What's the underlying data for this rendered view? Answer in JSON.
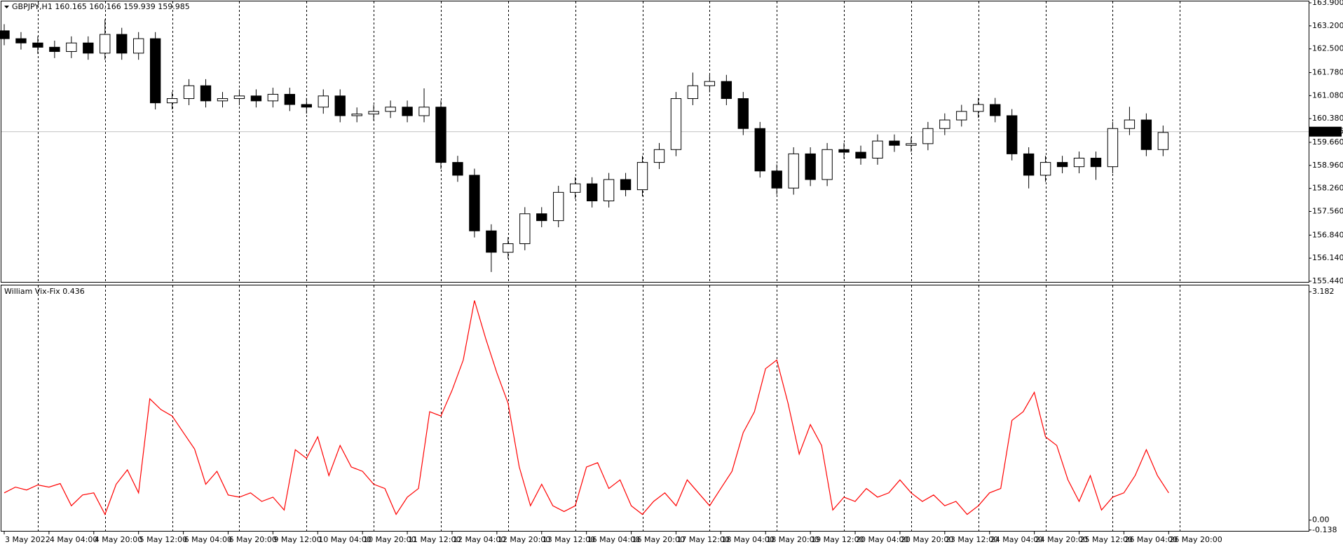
{
  "chart_data": [
    {
      "type": "candlestick",
      "title": "GBPJPY,H1  160.165 160.166 159.939 159.985",
      "x": [
        12,
        18,
        24,
        30,
        36,
        42,
        48,
        54,
        60,
        66,
        72,
        78,
        84,
        90,
        96,
        102,
        108,
        114,
        120,
        126,
        132,
        138,
        144,
        150,
        156,
        162,
        168,
        174,
        180,
        186,
        192,
        198,
        204,
        210,
        216,
        222,
        228,
        234,
        240,
        246,
        252,
        258,
        264,
        270,
        276,
        282,
        288,
        294,
        300,
        306,
        312,
        318,
        324,
        330,
        336,
        342,
        348,
        354,
        360,
        366,
        372,
        378,
        384,
        390,
        396,
        402,
        408,
        414,
        420,
        426
      ],
      "open": [
        163.05,
        162.81,
        162.68,
        162.55,
        162.42,
        162.68,
        162.37,
        162.94,
        162.37,
        162.81,
        160.86,
        160.99,
        161.38,
        160.92,
        160.99,
        161.07,
        160.92,
        161.12,
        160.81,
        160.73,
        161.07,
        160.47,
        160.52,
        160.6,
        160.73,
        160.47,
        160.73,
        159.05,
        158.66,
        156.97,
        156.32,
        156.58,
        157.49,
        157.28,
        158.14,
        158.4,
        157.88,
        158.53,
        158.22,
        159.05,
        159.44,
        160.99,
        161.38,
        161.51,
        160.99,
        160.08,
        158.79,
        158.27,
        159.31,
        158.53,
        159.44,
        159.36,
        159.18,
        159.7,
        159.57,
        159.62,
        160.08,
        160.34,
        160.6,
        160.81,
        160.47,
        159.31,
        158.66,
        159.05,
        158.92,
        159.18,
        158.92,
        160.08,
        160.34,
        159.44
      ],
      "high": [
        163.25,
        163.01,
        162.88,
        162.75,
        162.88,
        162.88,
        163.4,
        163.14,
        163.01,
        163.01,
        161.19,
        161.58,
        161.58,
        161.19,
        161.27,
        161.27,
        161.32,
        161.32,
        161.01,
        161.27,
        161.27,
        160.72,
        160.8,
        160.93,
        160.93,
        161.3,
        160.93,
        159.25,
        158.86,
        157.17,
        156.78,
        157.69,
        157.69,
        158.34,
        158.6,
        158.6,
        158.73,
        158.73,
        159.25,
        159.64,
        161.19,
        161.78,
        161.71,
        161.71,
        161.19,
        160.28,
        158.99,
        159.51,
        159.51,
        159.64,
        159.64,
        159.56,
        159.9,
        159.9,
        159.82,
        160.28,
        160.54,
        160.8,
        161.01,
        161.01,
        160.67,
        159.51,
        159.25,
        159.25,
        159.38,
        159.38,
        160.28,
        160.74,
        160.54,
        160.17
      ],
      "low": [
        162.61,
        162.48,
        162.35,
        162.22,
        162.22,
        162.17,
        162.17,
        162.17,
        162.17,
        160.66,
        160.66,
        160.79,
        160.72,
        160.72,
        160.79,
        160.72,
        160.72,
        160.61,
        160.53,
        160.53,
        160.27,
        160.27,
        160.32,
        160.4,
        160.27,
        160.27,
        158.85,
        158.46,
        156.77,
        155.72,
        156.12,
        156.38,
        157.08,
        157.08,
        157.94,
        157.68,
        157.68,
        158.02,
        158.02,
        158.85,
        159.24,
        160.79,
        161.18,
        160.79,
        159.88,
        158.59,
        158.07,
        158.07,
        158.33,
        158.33,
        159.16,
        158.98,
        158.98,
        159.37,
        159.37,
        159.42,
        159.88,
        160.14,
        160.4,
        160.27,
        159.11,
        158.26,
        158.46,
        158.72,
        158.72,
        158.52,
        158.72,
        159.88,
        159.24,
        159.24
      ],
      "close": [
        162.81,
        162.68,
        162.55,
        162.42,
        162.68,
        162.37,
        162.94,
        162.37,
        162.81,
        160.86,
        160.99,
        161.38,
        160.92,
        160.99,
        161.07,
        160.92,
        161.12,
        160.81,
        160.73,
        161.07,
        160.47,
        160.52,
        160.6,
        160.73,
        160.47,
        160.73,
        159.05,
        158.66,
        156.97,
        156.32,
        156.58,
        157.49,
        157.28,
        158.14,
        158.4,
        157.88,
        158.53,
        158.22,
        159.05,
        159.44,
        160.99,
        161.38,
        161.51,
        160.99,
        160.08,
        158.79,
        158.27,
        159.31,
        158.53,
        159.44,
        159.36,
        159.18,
        159.7,
        159.57,
        159.62,
        160.08,
        160.34,
        160.6,
        160.81,
        160.47,
        159.31,
        158.66,
        159.05,
        158.92,
        159.18,
        158.92,
        160.08,
        160.34,
        159.44,
        159.96
      ],
      "bull_color": "#ffffff",
      "bear_color": "#000000",
      "outline_color": "#000000",
      "current_price": 159.985,
      "xlim": [
        11,
        478
      ],
      "xgrid": [
        24,
        48,
        72,
        96,
        120,
        144,
        168,
        192,
        216,
        240,
        264,
        288,
        312,
        336,
        360,
        384,
        408,
        432
      ],
      "ylim": [
        155.44,
        163.9
      ],
      "yticks": [
        {
          "value": 163.9,
          "label": "163.900"
        },
        {
          "value": 163.2,
          "label": "163.200"
        },
        {
          "value": 162.5,
          "label": "162.500"
        },
        {
          "value": 161.78,
          "label": "161.780"
        },
        {
          "value": 161.08,
          "label": "161.080"
        },
        {
          "value": 160.38,
          "label": "160.380"
        },
        {
          "value": 159.66,
          "label": "159.660"
        },
        {
          "value": 158.96,
          "label": "158.960"
        },
        {
          "value": 158.26,
          "label": "158.260"
        },
        {
          "value": 157.56,
          "label": "157.560"
        },
        {
          "value": 156.84,
          "label": "156.840"
        },
        {
          "value": 156.14,
          "label": "156.140"
        },
        {
          "value": 155.44,
          "label": "155.440"
        }
      ]
    },
    {
      "type": "line",
      "title": "William Vix-Fix 0.436",
      "color": "#ff0000",
      "x": [
        12,
        16,
        20,
        24,
        28,
        32,
        36,
        40,
        44,
        48,
        52,
        56,
        60,
        64,
        68,
        72,
        76,
        80,
        84,
        88,
        92,
        96,
        100,
        104,
        108,
        112,
        116,
        120,
        124,
        128,
        132,
        136,
        140,
        144,
        148,
        152,
        156,
        160,
        164,
        168,
        172,
        176,
        180,
        184,
        188,
        192,
        196,
        200,
        204,
        208,
        212,
        216,
        220,
        224,
        228,
        232,
        236,
        240,
        244,
        248,
        252,
        256,
        260,
        264,
        268,
        272,
        276,
        280,
        284,
        288,
        292,
        296,
        300,
        304,
        308,
        312,
        316,
        320,
        324,
        328,
        332,
        336,
        340,
        344,
        348,
        352,
        356,
        360,
        364,
        368,
        372,
        376,
        380,
        384,
        388,
        392,
        396,
        400,
        404,
        408,
        412,
        416,
        420,
        424,
        428
      ],
      "values": [
        0.38,
        0.46,
        0.42,
        0.49,
        0.46,
        0.51,
        0.2,
        0.35,
        0.38,
        0.08,
        0.5,
        0.7,
        0.38,
        1.69,
        1.54,
        1.45,
        1.22,
        0.99,
        0.5,
        0.68,
        0.35,
        0.32,
        0.38,
        0.26,
        0.32,
        0.14,
        0.98,
        0.86,
        1.16,
        0.62,
        1.04,
        0.74,
        0.68,
        0.5,
        0.44,
        0.08,
        0.32,
        0.44,
        1.51,
        1.45,
        1.81,
        2.23,
        3.06,
        2.53,
        2.05,
        1.63,
        0.74,
        0.2,
        0.5,
        0.2,
        0.12,
        0.2,
        0.74,
        0.8,
        0.44,
        0.56,
        0.2,
        0.08,
        0.26,
        0.38,
        0.2,
        0.56,
        0.38,
        0.2,
        0.44,
        0.68,
        1.22,
        1.51,
        2.11,
        2.23,
        1.63,
        0.92,
        1.33,
        1.04,
        0.14,
        0.32,
        0.26,
        0.44,
        0.32,
        0.38,
        0.56,
        0.38,
        0.26,
        0.35,
        0.2,
        0.26,
        0.08,
        0.2,
        0.38,
        0.44,
        1.39,
        1.51,
        1.78,
        1.16,
        1.04,
        0.56,
        0.26,
        0.62,
        0.14,
        0.32,
        0.38,
        0.62,
        0.98,
        0.62,
        0.38
      ],
      "xlim": [
        11,
        478
      ],
      "ylim": [
        -0.15,
        3.26
      ],
      "yticks": [
        3.182,
        {
          "value": 0,
          "label": "0.00"
        },
        -0.138
      ],
      "xticks": [
        {
          "value": 12,
          "label": "3 May 2022"
        },
        {
          "value": 28,
          "label": "4 May 04:00"
        },
        {
          "value": 44,
          "label": "4 May 20:00"
        },
        {
          "value": 60,
          "label": "5 May 12:00"
        },
        {
          "value": 76,
          "label": "6 May 04:00"
        },
        {
          "value": 92,
          "label": "6 May 20:00"
        },
        {
          "value": 108,
          "label": "9 May 12:00"
        },
        {
          "value": 124,
          "label": "10 May 04:00"
        },
        {
          "value": 140,
          "label": "10 May 20:00"
        },
        {
          "value": 156,
          "label": "11 May 12:00"
        },
        {
          "value": 172,
          "label": "12 May 04:00"
        },
        {
          "value": 188,
          "label": "12 May 20:00"
        },
        {
          "value": 204,
          "label": "13 May 12:00"
        },
        {
          "value": 220,
          "label": "16 May 04:00"
        },
        {
          "value": 236,
          "label": "16 May 20:00"
        },
        {
          "value": 252,
          "label": "17 May 12:00"
        },
        {
          "value": 268,
          "label": "18 May 04:00"
        },
        {
          "value": 284,
          "label": "18 May 20:00"
        },
        {
          "value": 300,
          "label": "19 May 12:00"
        },
        {
          "value": 316,
          "label": "20 May 04:00"
        },
        {
          "value": 332,
          "label": "20 May 20:00"
        },
        {
          "value": 348,
          "label": "23 May 12:00"
        },
        {
          "value": 364,
          "label": "24 May 04:00"
        },
        {
          "value": 380,
          "label": "24 May 20:00"
        },
        {
          "value": 396,
          "label": "25 May 12:00"
        },
        {
          "value": 412,
          "label": "26 May 04:00"
        },
        {
          "value": 428,
          "label": "26 May 20:00"
        }
      ]
    }
  ]
}
